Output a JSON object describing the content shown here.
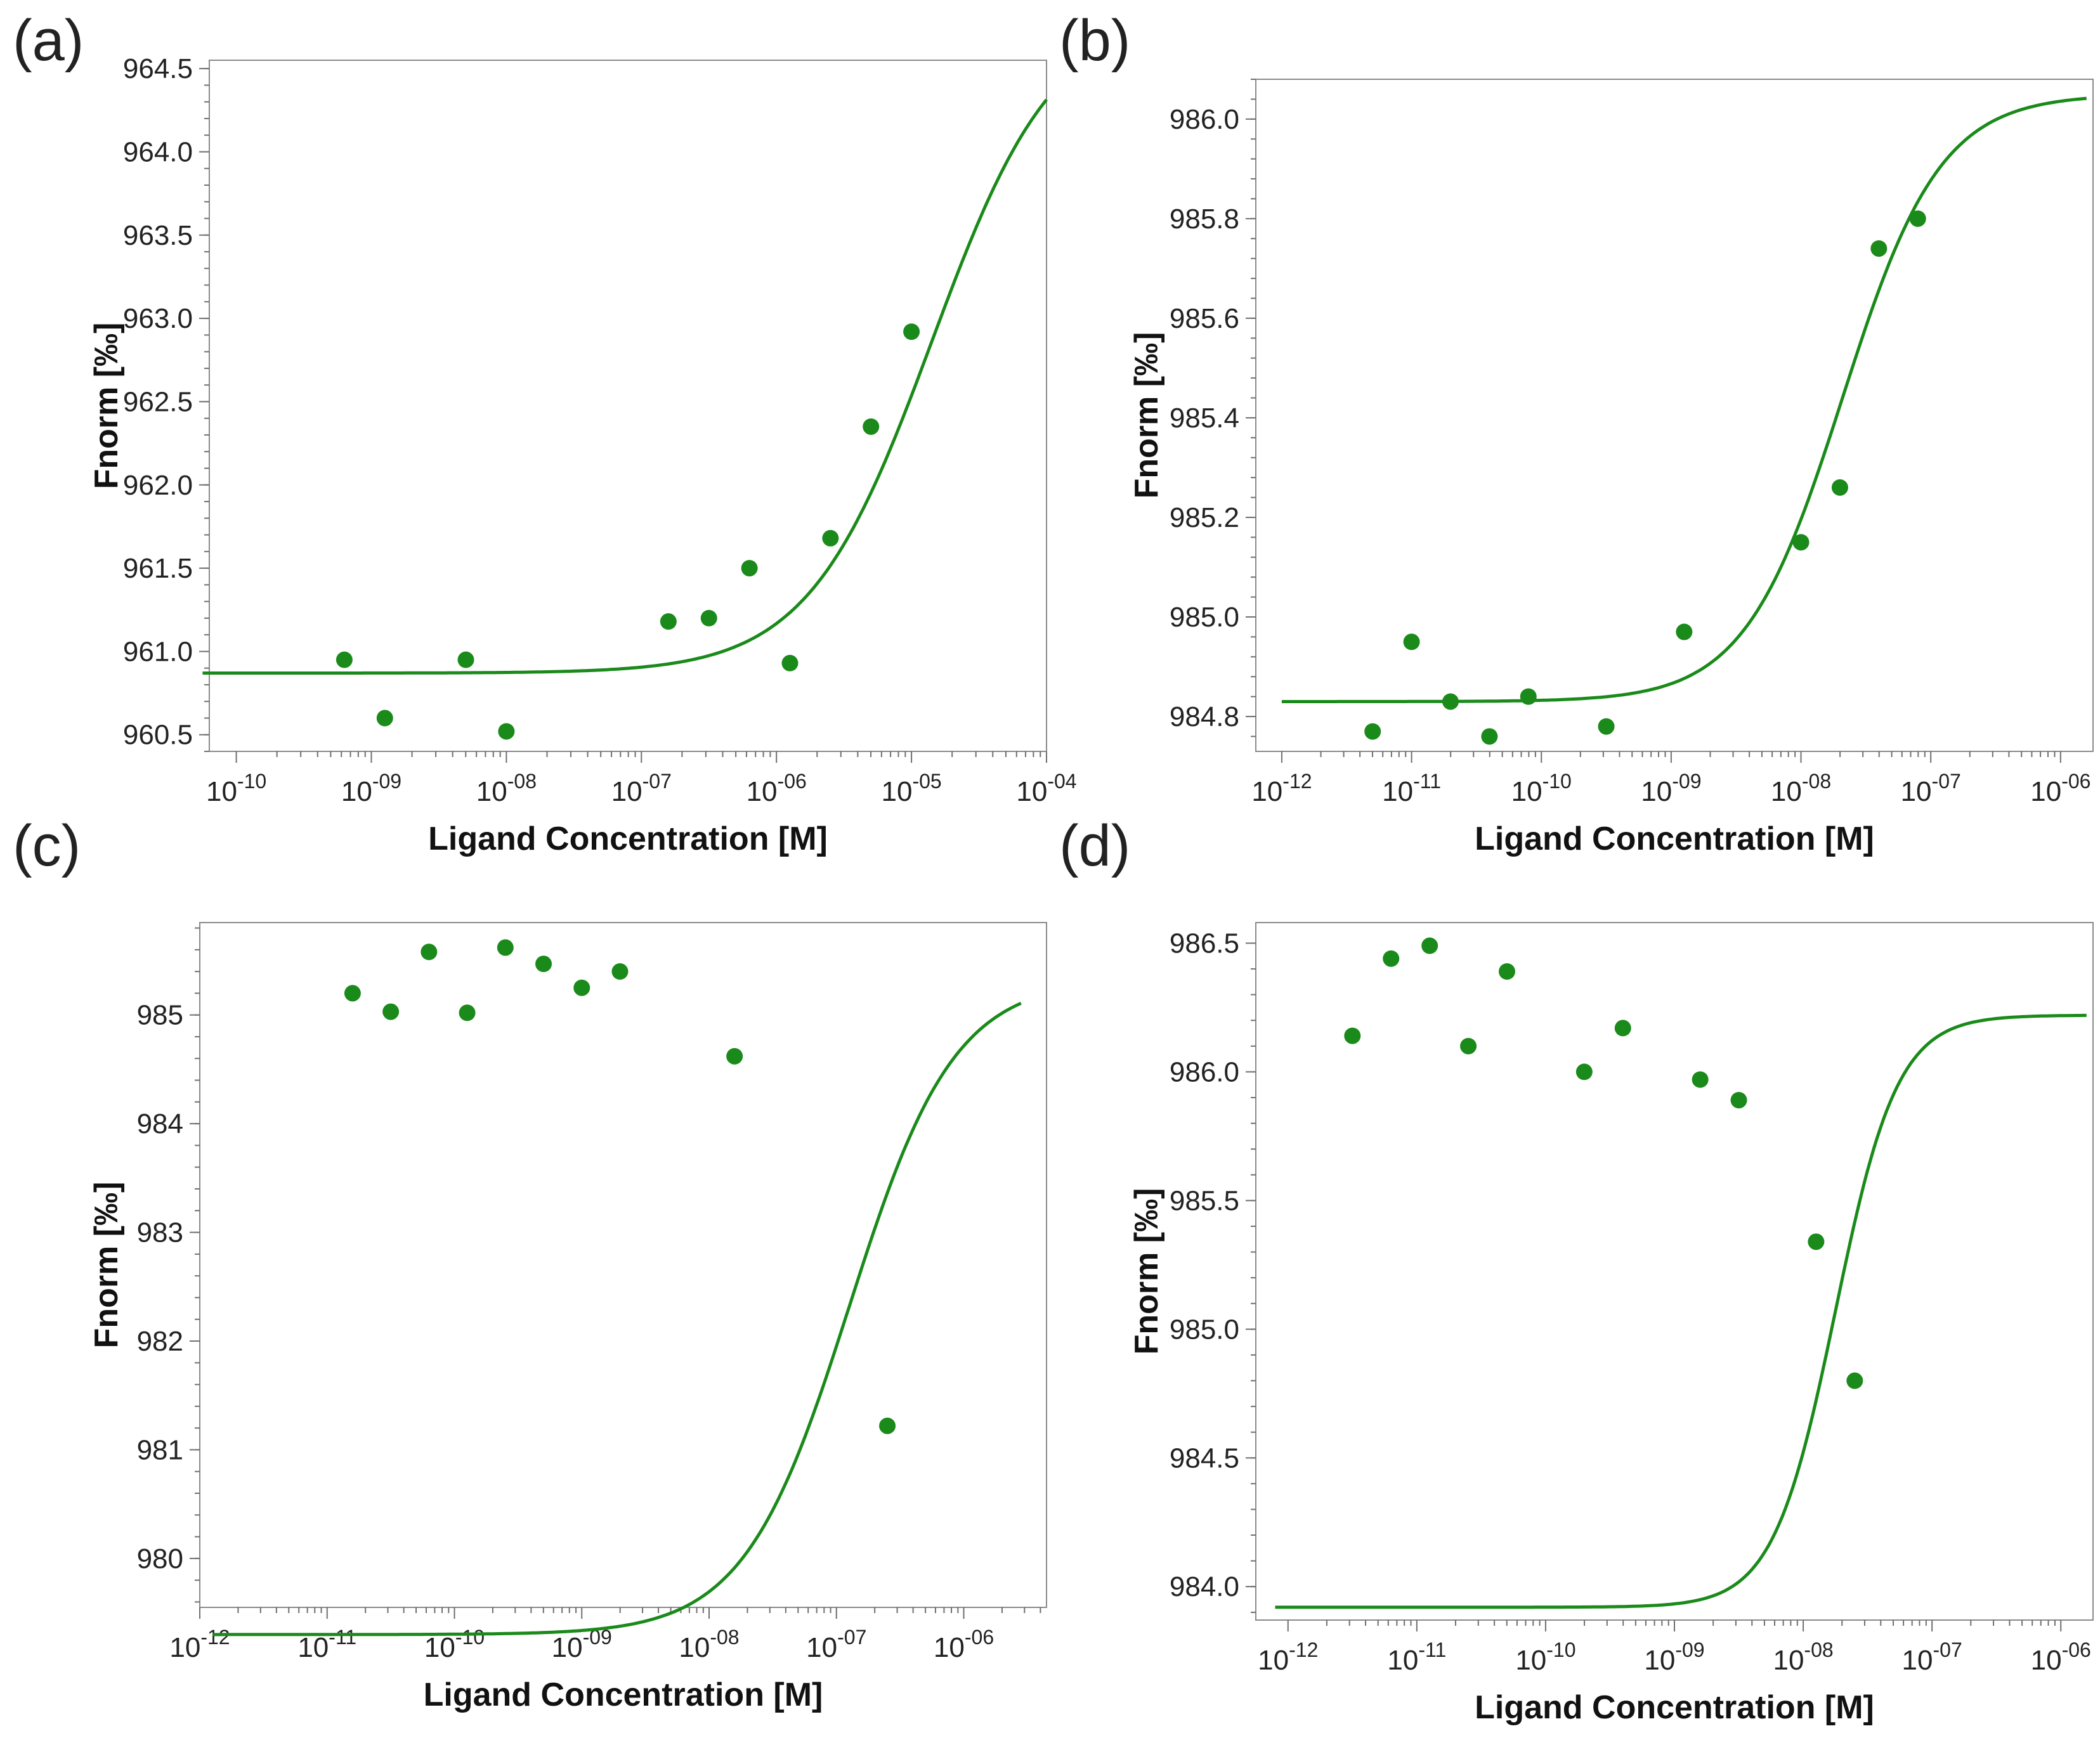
{
  "colors": {
    "series": "#1a8a1a",
    "axis": "#7a7a7a",
    "text": "#222222"
  },
  "chart_data": [
    {
      "panel": "(a)",
      "type": "scatter",
      "fit": "sigmoid",
      "xscale": "log",
      "xlabel": "Ligand Concentration [M]",
      "ylabel": "Fnorm [‰]",
      "xlim_exp": [
        -10.2,
        -4.0
      ],
      "ylim": [
        960.4,
        964.55
      ],
      "x_ticks_exp": [
        -10,
        -9,
        -8,
        -7,
        -6,
        -5,
        -4
      ],
      "x_tick_labels": [
        "10-10",
        "10-09",
        "10-08",
        "10-07",
        "10-06",
        "10-05",
        "10-04"
      ],
      "y_ticks": [
        960.5,
        961.0,
        961.5,
        962.0,
        962.5,
        963.0,
        963.5,
        964.0,
        964.5
      ],
      "y_tick_labels": [
        "960.5",
        "961.0",
        "961.5",
        "962.0",
        "962.5",
        "963.0",
        "963.5",
        "964.0",
        "964.5"
      ],
      "x_exp": [
        -9.2,
        -8.9,
        -8.3,
        -8.0,
        -6.8,
        -6.5,
        -6.2,
        -5.9,
        -5.6,
        -5.3,
        -5.0
      ],
      "y": [
        960.95,
        960.6,
        960.95,
        960.52,
        961.18,
        961.2,
        961.5,
        960.93,
        961.68,
        962.35,
        962.92
      ],
      "fit_params": {
        "bottom": 960.87,
        "top": 964.85,
        "ec50_exp": -4.85,
        "hill": 0.95
      },
      "fit_range_exp": [
        -10.25,
        -4.0
      ]
    },
    {
      "panel": "(b)",
      "type": "scatter",
      "fit": "sigmoid",
      "xscale": "log",
      "xlabel": "Ligand Concentration [M]",
      "ylabel": "Fnorm [‰]",
      "xlim_exp": [
        -12.2,
        -5.75
      ],
      "ylim": [
        984.73,
        986.08
      ],
      "x_ticks_exp": [
        -12,
        -11,
        -10,
        -9,
        -8,
        -7,
        -6
      ],
      "x_tick_labels": [
        "10-12",
        "10-11",
        "10-10",
        "10-09",
        "10-08",
        "10-07",
        "10-06"
      ],
      "y_ticks": [
        984.8,
        985.0,
        985.2,
        985.4,
        985.6,
        985.8,
        986.0
      ],
      "y_tick_labels": [
        "984.8",
        "985.0",
        "985.2",
        "985.4",
        "985.6",
        "985.8",
        "986.0"
      ],
      "x_exp": [
        -11.3,
        -11.0,
        -10.7,
        -10.4,
        -10.1,
        -9.5,
        -8.9,
        -8.0,
        -7.7,
        -7.4,
        -7.1
      ],
      "y": [
        984.77,
        984.95,
        984.83,
        984.76,
        984.84,
        984.78,
        984.97,
        985.15,
        985.26,
        985.74,
        985.8
      ],
      "fit_params": {
        "bottom": 984.83,
        "top": 986.05,
        "ec50_exp": -7.68,
        "hill": 1.15
      },
      "fit_range_exp": [
        -12.0,
        -5.8
      ]
    },
    {
      "panel": "(c)",
      "type": "scatter",
      "fit": "sigmoid",
      "xscale": "log",
      "xlabel": "Ligand Concentration [M]",
      "ylabel": "Fnorm [‰]",
      "xlim_exp": [
        -12.0,
        -5.35
      ],
      "ylim": [
        979.55,
        985.85
      ],
      "x_ticks_exp": [
        -12,
        -11,
        -10,
        -9,
        -8,
        -7,
        -6
      ],
      "x_tick_labels": [
        "10-12",
        "10-11",
        "10-10",
        "10-09",
        "10-08",
        "10-07",
        "10-06"
      ],
      "y_ticks": [
        980,
        981,
        982,
        983,
        984,
        985
      ],
      "y_tick_labels": [
        "980",
        "981",
        "982",
        "983",
        "984",
        "985"
      ],
      "x_exp": [
        -10.8,
        -10.5,
        -10.2,
        -9.9,
        -9.6,
        -9.3,
        -9.0,
        -8.7,
        -7.8,
        -6.6
      ],
      "y": [
        985.2,
        985.03,
        985.58,
        985.02,
        985.62,
        985.47,
        985.25,
        985.4,
        984.62,
        981.22
      ],
      "fit_params": {
        "bottom": 979.3,
        "top": 985.33,
        "ec50_exp": -6.9,
        "hill": 1.05
      },
      "fit_range_exp": [
        -11.9,
        -5.55
      ]
    },
    {
      "panel": "(d)",
      "type": "scatter",
      "fit": "sigmoid",
      "xscale": "log",
      "xlabel": "Ligand Concentration [M]",
      "ylabel": "Fnorm [‰]",
      "xlim_exp": [
        -12.25,
        -5.75
      ],
      "ylim": [
        983.87,
        986.58
      ],
      "x_ticks_exp": [
        -12,
        -11,
        -10,
        -9,
        -8,
        -7,
        -6
      ],
      "x_tick_labels": [
        "10-12",
        "10-11",
        "10-10",
        "10-09",
        "10-08",
        "10-07",
        "10-06"
      ],
      "y_ticks": [
        984.0,
        984.5,
        985.0,
        985.5,
        986.0,
        986.5
      ],
      "y_tick_labels": [
        "984.0",
        "984.5",
        "985.0",
        "985.5",
        "986.0",
        "986.5"
      ],
      "x_exp": [
        -11.5,
        -11.2,
        -10.9,
        -10.6,
        -10.3,
        -9.7,
        -9.4,
        -8.8,
        -8.5,
        -7.9,
        -7.6
      ],
      "y": [
        986.14,
        986.44,
        986.49,
        986.1,
        986.39,
        986.0,
        986.17,
        985.97,
        985.89,
        985.34,
        984.8
      ],
      "fit_params": {
        "bottom": 983.92,
        "top": 986.22,
        "ec50_exp": -7.75,
        "hill": 1.8
      },
      "fit_range_exp": [
        -12.1,
        -5.8
      ]
    }
  ]
}
